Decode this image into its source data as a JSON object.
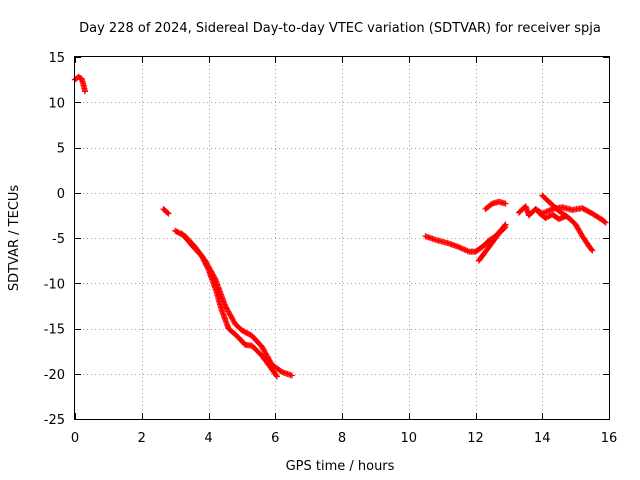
{
  "chart_data": {
    "type": "scatter",
    "title": "Day 228 of 2024, Sidereal Day-to-day VTEC variation (SDTVAR) for receiver spja",
    "xlabel": "GPS time / hours",
    "ylabel": "SDTVAR / TECUs",
    "xlim": [
      0,
      16
    ],
    "ylim": [
      -25,
      15
    ],
    "xticks": [
      0,
      2,
      4,
      6,
      8,
      10,
      12,
      14,
      16
    ],
    "yticks": [
      15,
      10,
      5,
      0,
      -5,
      -10,
      -15,
      -20,
      -25
    ],
    "x_tick_labels": [
      "0",
      "2",
      "4",
      "6",
      "8",
      "10",
      "12",
      "14",
      "16"
    ],
    "y_tick_labels": [
      "15",
      "10",
      "5",
      "0",
      "-5",
      "-10",
      "-15",
      "-20",
      "-25"
    ],
    "grid": true,
    "marker": "+",
    "series": [
      {
        "name": "arc-1",
        "color": "#ff0000",
        "points": [
          [
            0.0,
            12.5
          ],
          [
            0.1,
            12.8
          ],
          [
            0.2,
            12.6
          ],
          [
            0.25,
            12.0
          ],
          [
            0.3,
            11.2
          ]
        ]
      },
      {
        "name": "arc-2",
        "color": "#ff0000",
        "points": [
          [
            2.65,
            -1.8
          ],
          [
            2.8,
            -2.3
          ]
        ]
      },
      {
        "name": "arc-3",
        "color": "#ff0000",
        "points": [
          [
            3.0,
            -4.2
          ],
          [
            3.3,
            -4.8
          ],
          [
            3.6,
            -6.0
          ],
          [
            3.9,
            -7.5
          ],
          [
            4.2,
            -9.5
          ],
          [
            4.5,
            -12.5
          ],
          [
            4.8,
            -14.5
          ],
          [
            5.0,
            -15.2
          ],
          [
            5.3,
            -15.8
          ],
          [
            5.6,
            -17.0
          ],
          [
            5.9,
            -19.0
          ],
          [
            6.2,
            -19.8
          ],
          [
            6.5,
            -20.2
          ]
        ]
      },
      {
        "name": "arc-4",
        "color": "#ff0000",
        "points": [
          [
            3.2,
            -4.5
          ],
          [
            3.5,
            -5.8
          ],
          [
            3.8,
            -7.0
          ],
          [
            4.0,
            -8.5
          ],
          [
            4.2,
            -10.5
          ],
          [
            4.4,
            -13.0
          ],
          [
            4.6,
            -15.0
          ],
          [
            4.9,
            -16.0
          ],
          [
            5.1,
            -16.8
          ],
          [
            5.3,
            -16.9
          ],
          [
            5.6,
            -18.0
          ],
          [
            5.9,
            -19.5
          ],
          [
            6.05,
            -20.3
          ]
        ]
      },
      {
        "name": "arc-5",
        "color": "#ff0000",
        "points": [
          [
            10.5,
            -4.8
          ],
          [
            10.8,
            -5.2
          ],
          [
            11.2,
            -5.6
          ],
          [
            11.5,
            -6.0
          ],
          [
            11.8,
            -6.5
          ],
          [
            12.0,
            -6.5
          ],
          [
            12.2,
            -6.0
          ],
          [
            12.4,
            -5.3
          ],
          [
            12.6,
            -4.8
          ],
          [
            12.8,
            -4.0
          ],
          [
            12.9,
            -3.5
          ]
        ]
      },
      {
        "name": "arc-6",
        "color": "#ff0000",
        "points": [
          [
            12.1,
            -7.5
          ],
          [
            12.3,
            -6.5
          ],
          [
            12.5,
            -5.5
          ],
          [
            12.7,
            -4.5
          ],
          [
            12.9,
            -3.8
          ]
        ]
      },
      {
        "name": "arc-7",
        "color": "#ff0000",
        "points": [
          [
            12.3,
            -1.8
          ],
          [
            12.5,
            -1.2
          ],
          [
            12.7,
            -1.0
          ],
          [
            12.9,
            -1.2
          ]
        ]
      },
      {
        "name": "arc-8",
        "color": "#ff0000",
        "points": [
          [
            13.3,
            -2.2
          ],
          [
            13.5,
            -1.5
          ],
          [
            13.6,
            -2.5
          ],
          [
            13.8,
            -1.8
          ],
          [
            14.0,
            -2.3
          ],
          [
            14.3,
            -1.8
          ],
          [
            14.6,
            -1.6
          ],
          [
            14.9,
            -1.9
          ],
          [
            15.2,
            -1.7
          ],
          [
            15.5,
            -2.3
          ],
          [
            15.8,
            -3.0
          ],
          [
            15.9,
            -3.3
          ]
        ]
      },
      {
        "name": "arc-9",
        "color": "#ff0000",
        "points": [
          [
            14.0,
            -0.3
          ],
          [
            14.2,
            -1.0
          ],
          [
            14.5,
            -2.0
          ],
          [
            14.8,
            -2.8
          ],
          [
            15.0,
            -3.5
          ],
          [
            15.2,
            -4.8
          ],
          [
            15.4,
            -5.9
          ],
          [
            15.5,
            -6.4
          ]
        ]
      },
      {
        "name": "arc-10",
        "color": "#ff0000",
        "points": [
          [
            13.9,
            -2.2
          ],
          [
            14.1,
            -2.8
          ],
          [
            14.3,
            -2.4
          ],
          [
            14.5,
            -2.9
          ],
          [
            14.7,
            -2.6
          ]
        ]
      }
    ]
  }
}
